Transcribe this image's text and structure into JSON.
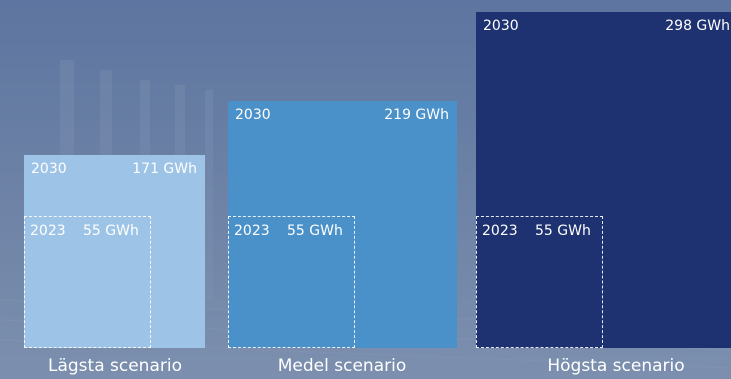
{
  "chart_data": {
    "type": "bar",
    "categories": [
      "Lägsta scenario",
      "Medel scenario",
      "Högsta scenario"
    ],
    "series": [
      {
        "values": [
          171,
          219,
          298
        ]
      }
    ],
    "baseline": {
      "year": "2023",
      "value_label": "55 GWh",
      "value": 55
    },
    "bars": [
      {
        "year": "2030",
        "value_label": "171 GWh",
        "color": "#9dc3e6"
      },
      {
        "year": "2030",
        "value_label": "219 GWh",
        "color": "#4a90c9"
      },
      {
        "year": "2030",
        "value_label": "298 GWh",
        "color": "#1e3272"
      }
    ],
    "unit": "GWh",
    "max_value": 298
  },
  "colors": {
    "background": "#5e7296",
    "text": "#ffffff"
  }
}
